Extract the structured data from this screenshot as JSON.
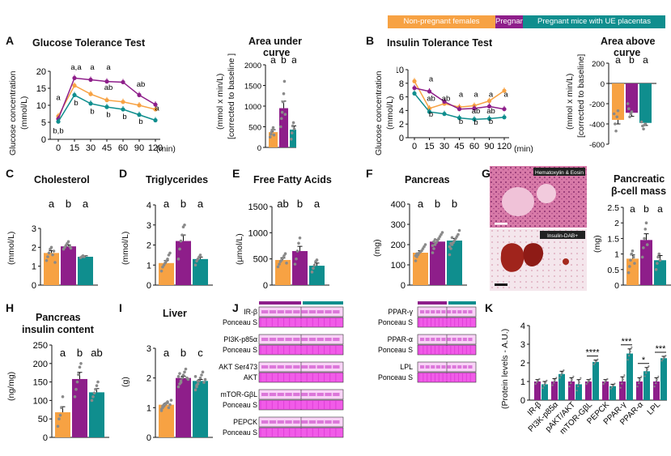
{
  "colors": {
    "np": "#F7A243",
    "ctl": "#8E1E8A",
    "ue": "#0F8E8E",
    "text": "#111111",
    "band": "#F15BE8",
    "band_dark": "#C52BC3",
    "wb_bg": "#F8C6F6"
  },
  "legend": [
    "Non-pregnant females",
    "Pregnant mice with control placentas",
    "Pregnant mice with UE placentas"
  ],
  "panels": {
    "A": "A",
    "B": "B",
    "C": "C",
    "D": "D",
    "E": "E",
    "F": "F",
    "G": "G",
    "H": "H",
    "I": "I",
    "J": "J",
    "K": "K"
  },
  "titles": {
    "gtt": "Glucose Tolerance Test",
    "auc_1": "Area under",
    "auc_2": "curve",
    "itt": "Insulin Tolerance Test",
    "aac_1": "Area above",
    "aac_2": "curve",
    "chol": "Cholesterol",
    "tg": "Triglycerides",
    "ffa": "Free Fatty Acids",
    "pancreas": "Pancreas",
    "beta_1": "Pancreatic",
    "beta_2": "β-cell mass",
    "ins_1": "Pancreas",
    "ins_2": "insulin content",
    "liver": "Liver"
  },
  "ylabels": {
    "gtt_1": "Glucose concentration",
    "gtt_2": "(mmol/L)",
    "auc_1": "(mmol x min/L)",
    "auc_2": "[corrected to baseline ]",
    "itt_1": "Glucose concentration",
    "itt_2": "(mmol/L)",
    "aac_1": "(mmol x min/L)",
    "aac_2": "[corrected to baseline]",
    "chol": "(mmol/L)",
    "tg": "(mmol/L)",
    "ffa": "(µmol/L)",
    "pancreas": "(mg)",
    "beta": "(mg)",
    "ins": "(ng/mg)",
    "liver": "(g)",
    "k": "(Protein levels - A.U.)"
  },
  "histology": {
    "top": "Hematoxylin & Eosin",
    "bottom": "Insulin-DAB+"
  },
  "western": {
    "left": [
      [
        "IR-β",
        "Ponceau S"
      ],
      [
        "PI3K-p85α",
        "Ponceau S"
      ],
      [
        "p-AKT Ser473",
        "AKT"
      ],
      [
        "mTOR-GβL",
        "Ponceau S"
      ],
      [
        "PEPCK",
        "Ponceau S"
      ]
    ],
    "right": [
      [
        "PPAR-γ",
        "Ponceau S"
      ],
      [
        "PPAR-α",
        "Ponceau S"
      ],
      [
        "LPL",
        "Ponceau S"
      ]
    ]
  },
  "chart_data": [
    {
      "id": "A_line",
      "type": "line",
      "title": "Glucose Tolerance Test",
      "xlabel": "(min)",
      "ylabel": "Glucose concentration (mmol/L)",
      "x": [
        0,
        15,
        30,
        45,
        60,
        90,
        120
      ],
      "ylim": [
        0,
        20
      ],
      "yticks": [
        0,
        5,
        10,
        15,
        20
      ],
      "xticks": [
        "0",
        "15",
        "30",
        "45",
        "60",
        "90",
        "120"
      ],
      "series": [
        {
          "name": "Non-pregnant females",
          "color": "np",
          "values": [
            6.8,
            15.8,
            13.3,
            11.5,
            11.0,
            10.0,
            8.8
          ]
        },
        {
          "name": "Pregnant mice with control placentas",
          "color": "ctl",
          "values": [
            6.0,
            18.0,
            17.5,
            17.0,
            16.8,
            13.0,
            10.2
          ]
        },
        {
          "name": "Pregnant mice with UE placentas",
          "color": "ue",
          "values": [
            5.2,
            13.0,
            10.5,
            9.5,
            8.8,
            7.2,
            5.6
          ]
        }
      ],
      "annotations": [
        {
          "x": 0,
          "y": 11.5,
          "text": "a"
        },
        {
          "x": 0,
          "y": 1.8,
          "text": "b,b"
        },
        {
          "x": 15,
          "y": 20.5,
          "text": "a,a"
        },
        {
          "x": 15,
          "y": 10.0,
          "text": "b"
        },
        {
          "x": 30,
          "y": 20.5,
          "text": "a"
        },
        {
          "x": 30,
          "y": 7.5,
          "text": "b"
        },
        {
          "x": 45,
          "y": 20.5,
          "text": "a"
        },
        {
          "x": 45,
          "y": 14.5,
          "text": "ab"
        },
        {
          "x": 45,
          "y": 6.5,
          "text": "b"
        },
        {
          "x": 60,
          "y": 6.0,
          "text": "b"
        },
        {
          "x": 90,
          "y": 15.5,
          "text": "ab"
        },
        {
          "x": 90,
          "y": 4.5,
          "text": "b"
        },
        {
          "x": 120,
          "y": 8.5,
          "text": "a"
        }
      ]
    },
    {
      "id": "A_bar",
      "type": "bar",
      "title": "Area under curve",
      "ylabel": "(mmol x min/L) [corrected to baseline ]",
      "ylim": [
        0,
        2000
      ],
      "yticks": [
        0,
        500,
        1000,
        1500,
        2000
      ],
      "values": [
        370,
        950,
        430
      ],
      "errors": [
        60,
        170,
        90
      ],
      "letters": [
        "a",
        "b",
        "a"
      ],
      "points": [
        [
          250,
          320,
          380,
          420,
          480,
          300
        ],
        [
          500,
          700,
          850,
          1100,
          1300,
          1600,
          800
        ],
        [
          200,
          350,
          520,
          600,
          450
        ]
      ]
    },
    {
      "id": "B_line",
      "type": "line",
      "title": "Insulin Tolerance Test",
      "xlabel": "(min)",
      "ylabel": "Glucose concentration (mmol/L)",
      "x": [
        0,
        15,
        30,
        45,
        60,
        90,
        120
      ],
      "ylim": [
        0,
        10
      ],
      "yticks": [
        0,
        2,
        4,
        6,
        8,
        10
      ],
      "xticks": [
        "0",
        "15",
        "30",
        "45",
        "60",
        "90",
        "120"
      ],
      "series": [
        {
          "name": "Non-pregnant females",
          "color": "np",
          "values": [
            8.3,
            4.3,
            5.0,
            4.5,
            4.7,
            5.4,
            6.9
          ]
        },
        {
          "name": "Pregnant mice with control placentas",
          "color": "ctl",
          "values": [
            7.3,
            6.8,
            5.3,
            4.2,
            4.3,
            4.6,
            4.2
          ]
        },
        {
          "name": "Pregnant mice with UE placentas",
          "color": "ue",
          "values": [
            6.5,
            3.8,
            3.5,
            2.9,
            2.7,
            2.8,
            3.0
          ]
        }
      ],
      "annotations": [
        {
          "x": 15,
          "y": 8.3,
          "text": "a"
        },
        {
          "x": 15,
          "y": 5.4,
          "text": "ab"
        },
        {
          "x": 15,
          "y": 3.1,
          "text": "b"
        },
        {
          "x": 30,
          "y": 5.4,
          "text": "ab"
        },
        {
          "x": 45,
          "y": 6.0,
          "text": "a"
        },
        {
          "x": 45,
          "y": 2.0,
          "text": "b"
        },
        {
          "x": 60,
          "y": 6.0,
          "text": "a"
        },
        {
          "x": 60,
          "y": 3.6,
          "text": "ab"
        },
        {
          "x": 60,
          "y": 1.9,
          "text": "b"
        },
        {
          "x": 90,
          "y": 6.0,
          "text": "a"
        },
        {
          "x": 90,
          "y": 3.6,
          "text": "ab"
        },
        {
          "x": 90,
          "y": 2.0,
          "text": "b"
        },
        {
          "x": 120,
          "y": 6.0,
          "text": "a"
        }
      ]
    },
    {
      "id": "B_bar",
      "type": "bar",
      "title": "Area above curve",
      "ylabel": "(mmol x min/L) [corrected to baseline]",
      "ylim": [
        -600,
        200
      ],
      "yticks": [
        -600,
        -400,
        -200,
        0,
        200
      ],
      "values": [
        -360,
        -290,
        -390
      ],
      "errors": [
        40,
        35,
        25
      ],
      "letters": [
        "a",
        "b",
        "a"
      ],
      "points": [
        [
          -300,
          -400,
          -470,
          -330,
          -270
        ],
        [
          -200,
          -250,
          -330,
          -300,
          -280
        ],
        [
          -380,
          -420,
          -450,
          -410,
          -400
        ]
      ]
    },
    {
      "id": "C",
      "type": "bar",
      "title": "Cholesterol",
      "ylabel": "(mmol/L)",
      "ylim": [
        0,
        3
      ],
      "yticks": [
        0,
        1,
        2,
        3
      ],
      "values": [
        1.7,
        2.05,
        1.5
      ],
      "errors": [
        0.12,
        0.08,
        0.05
      ],
      "letters": [
        "a",
        "b",
        "a"
      ],
      "points": [
        [
          1.3,
          1.5,
          1.7,
          1.9,
          2.0,
          1.6,
          1.8,
          1.2
        ],
        [
          1.9,
          2.0,
          2.1,
          2.2,
          2.3,
          2.05,
          1.95
        ],
        [
          1.45,
          1.5,
          1.55,
          1.5
        ]
      ]
    },
    {
      "id": "D",
      "type": "bar",
      "title": "Triglycerides",
      "ylabel": "(mmol/L)",
      "ylim": [
        0,
        4
      ],
      "yticks": [
        0,
        1,
        2,
        3,
        4
      ],
      "values": [
        1.1,
        2.2,
        1.3
      ],
      "errors": [
        0.12,
        0.3,
        0.1
      ],
      "letters": [
        "a",
        "b",
        "a"
      ],
      "points": [
        [
          0.7,
          0.9,
          1.0,
          1.1,
          1.2,
          1.3,
          1.5,
          1.6
        ],
        [
          1.3,
          1.8,
          2.2,
          2.5,
          2.9,
          3.0
        ],
        [
          1.0,
          1.2,
          1.3,
          1.4,
          1.5
        ]
      ]
    },
    {
      "id": "E",
      "type": "bar",
      "title": "Free Fatty Acids",
      "ylabel": "(µmol/L)",
      "ylim": [
        0,
        1500
      ],
      "yticks": [
        0,
        500,
        1000,
        1500
      ],
      "values": [
        480,
        650,
        370
      ],
      "errors": [
        40,
        90,
        50
      ],
      "letters": [
        "ab",
        "b",
        "a"
      ],
      "points": [
        [
          350,
          400,
          450,
          480,
          520,
          560,
          600,
          420
        ],
        [
          400,
          500,
          650,
          800,
          900
        ],
        [
          250,
          320,
          380,
          450,
          480
        ]
      ]
    },
    {
      "id": "F",
      "type": "bar",
      "title": "Pancreas",
      "ylabel": "(mg)",
      "ylim": [
        0,
        400
      ],
      "yticks": [
        0,
        100,
        200,
        300,
        400
      ],
      "values": [
        160,
        215,
        220
      ],
      "errors": [
        10,
        10,
        10
      ],
      "letters": [
        "a",
        "b",
        "b"
      ],
      "points": [
        [
          120,
          140,
          150,
          160,
          165,
          170,
          180,
          190,
          200,
          145,
          155
        ],
        [
          160,
          180,
          200,
          210,
          220,
          230,
          240,
          250,
          260,
          195,
          215,
          225
        ],
        [
          150,
          180,
          200,
          210,
          220,
          230,
          240,
          250,
          270,
          190,
          205,
          235
        ]
      ]
    },
    {
      "id": "G",
      "type": "bar",
      "title": "Pancreatic β-cell mass",
      "ylabel": "(mg)",
      "ylim": [
        0,
        2.5
      ],
      "yticks": [
        0,
        0.5,
        1.0,
        1.5,
        2.0,
        2.5
      ],
      "values": [
        0.85,
        1.45,
        0.8
      ],
      "errors": [
        0.12,
        0.2,
        0.15
      ],
      "letters": [
        "a",
        "b",
        "a"
      ],
      "points": [
        [
          0.4,
          0.6,
          0.8,
          1.0,
          1.1,
          0.9,
          0.7
        ],
        [
          0.9,
          1.2,
          1.5,
          1.8,
          2.0,
          1.3
        ],
        [
          0.5,
          0.7,
          0.9,
          1.0,
          0.8
        ]
      ]
    },
    {
      "id": "H",
      "type": "bar",
      "title": "Pancreas insulin content",
      "ylabel": "(ng/mg)",
      "ylim": [
        0,
        250
      ],
      "yticks": [
        0,
        50,
        100,
        150,
        200,
        250
      ],
      "values": [
        68,
        158,
        122
      ],
      "errors": [
        15,
        18,
        10
      ],
      "letters": [
        "a",
        "b",
        "ab"
      ],
      "points": [
        [
          30,
          50,
          60,
          80,
          110
        ],
        [
          110,
          130,
          150,
          170,
          190,
          200
        ],
        [
          100,
          110,
          120,
          130,
          140,
          150
        ]
      ]
    },
    {
      "id": "I",
      "type": "bar",
      "title": "Liver",
      "ylabel": "(g)",
      "ylim": [
        0,
        3
      ],
      "yticks": [
        0,
        1,
        2,
        3
      ],
      "values": [
        1.1,
        2.0,
        1.9
      ],
      "errors": [
        0.05,
        0.06,
        0.05
      ],
      "letters": [
        "a",
        "b",
        "c"
      ],
      "points": [
        [
          0.9,
          1.0,
          1.05,
          1.1,
          1.15,
          1.2,
          1.0,
          1.1,
          1.25,
          0.95,
          1.05,
          1.1
        ],
        [
          1.7,
          1.8,
          1.9,
          2.0,
          2.1,
          2.2,
          2.3,
          2.0,
          1.95,
          2.05,
          2.15,
          1.85
        ],
        [
          1.6,
          1.7,
          1.8,
          1.9,
          2.0,
          2.1,
          2.2,
          1.85,
          1.95,
          2.05,
          1.75,
          1.9
        ]
      ]
    },
    {
      "id": "K",
      "type": "bar",
      "ylabel": "(Protein levels - A.U.)",
      "ylim": [
        0,
        4
      ],
      "yticks": [
        0,
        1,
        2,
        3,
        4
      ],
      "categories": [
        "IR-β",
        "PI3K-p85α",
        "pAKT/AKT",
        "mTOR-GβL",
        "PEPCK",
        "PPAR-γ",
        "PPAR-α",
        "LPL"
      ],
      "series": [
        {
          "name": "Pregnant mice with control placentas",
          "color": "ctl",
          "values": [
            1.0,
            1.0,
            1.0,
            1.0,
            1.0,
            1.0,
            1.0,
            1.0
          ],
          "errors": [
            0.1,
            0.15,
            0.2,
            0.1,
            0.1,
            0.25,
            0.2,
            0.2
          ]
        },
        {
          "name": "Pregnant mice with UE placentas",
          "color": "ue",
          "values": [
            0.85,
            1.4,
            0.85,
            2.05,
            0.75,
            2.5,
            1.55,
            2.25
          ],
          "errors": [
            0.15,
            0.15,
            0.25,
            0.1,
            0.1,
            0.25,
            0.2,
            0.1
          ]
        }
      ],
      "significance": [
        {
          "pair": 3,
          "text": "****"
        },
        {
          "pair": 5,
          "text": "***"
        },
        {
          "pair": 6,
          "text": "*"
        },
        {
          "pair": 7,
          "text": "***"
        }
      ]
    }
  ]
}
